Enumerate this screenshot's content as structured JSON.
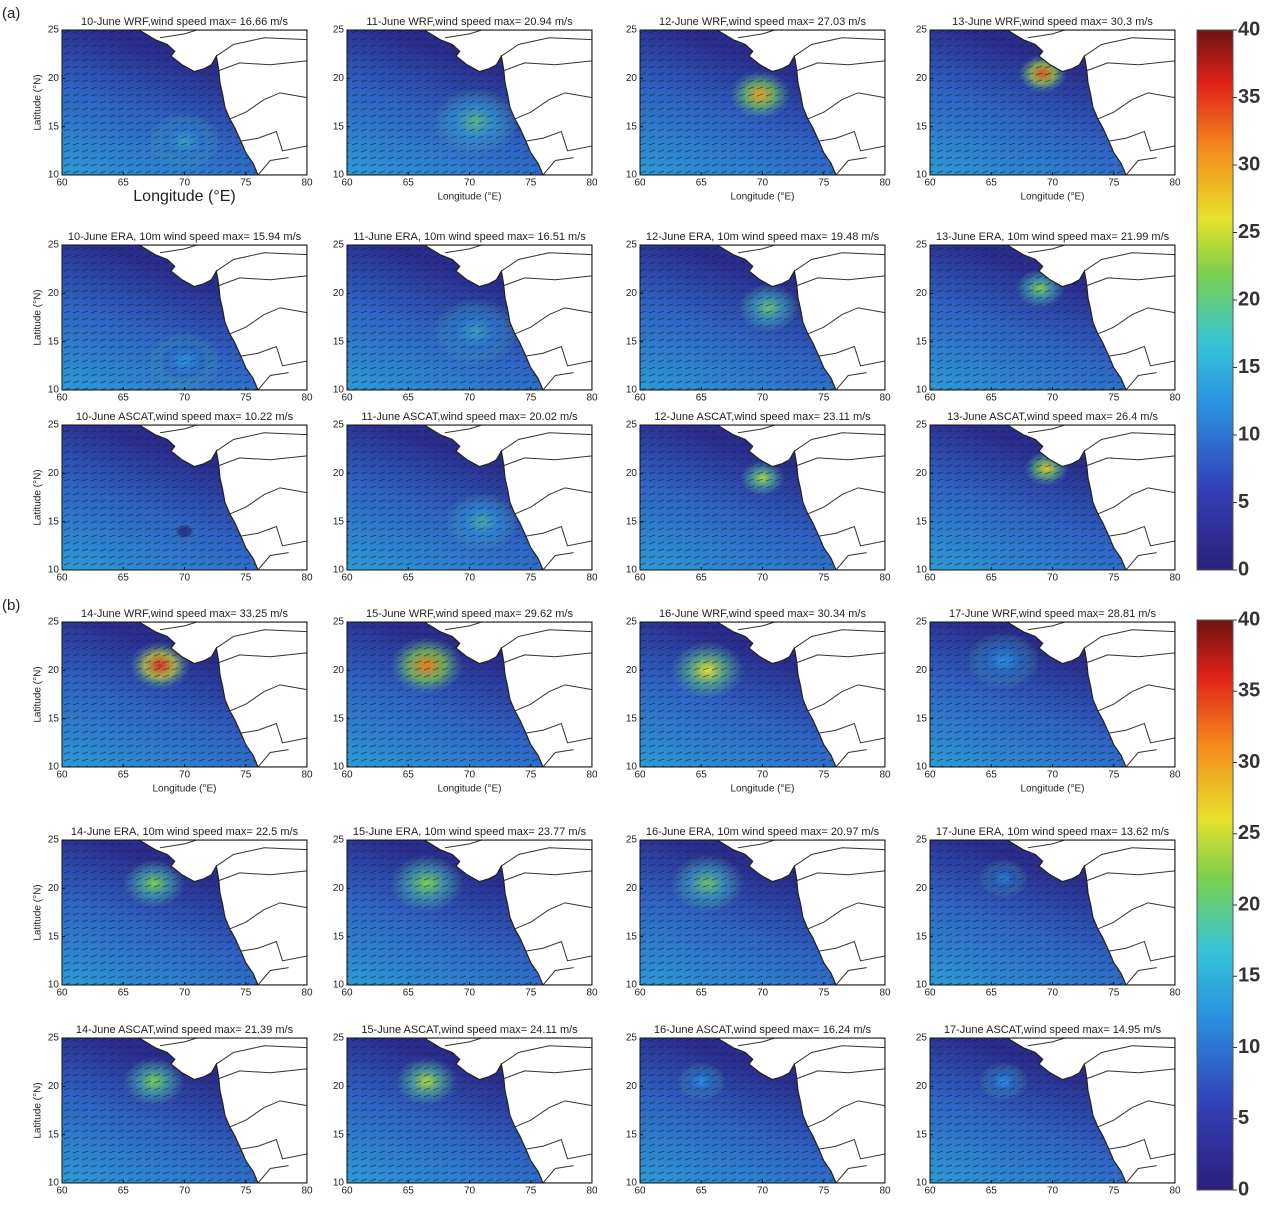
{
  "axes": {
    "xlim": [
      60,
      80
    ],
    "ylim": [
      10,
      25
    ],
    "xticks": [
      60,
      65,
      70,
      75,
      80
    ],
    "yticks": [
      10,
      15,
      20,
      25
    ],
    "xlabel": "Longitude (°E)",
    "ylabel": "Latitude (°N)"
  },
  "colorbar": {
    "lim": [
      0,
      40
    ],
    "ticks": [
      0,
      5,
      10,
      15,
      20,
      25,
      30,
      35,
      40
    ]
  },
  "parts": [
    {
      "label": "(a)",
      "panels": [
        "10-June WRF,wind speed max= 16.66 m/s",
        "11-June WRF,wind speed max= 20.94 m/s",
        "12-June WRF,wind speed max= 27.03 m/s",
        "13-June WRF,wind speed max= 30.3 m/s",
        "10-June ERA, 10m wind speed max= 15.94 m/s",
        "11-June ERA, 10m wind speed max= 16.51 m/s",
        "12-June ERA, 10m wind speed max= 19.48 m/s",
        "13-June ERA, 10m wind speed max= 21.99 m/s",
        "10-June ASCAT,wind speed max= 10.22 m/s",
        "11-June ASCAT,wind speed max= 20.02 m/s",
        "12-June ASCAT,wind speed max= 23.11 m/s",
        "13-June ASCAT,wind speed max= 26.4 m/s"
      ]
    },
    {
      "label": "(b)",
      "panels": [
        "14-June WRF,wind speed max= 33.25 m/s",
        "15-June WRF,wind speed max= 29.62 m/s",
        "16-June WRF,wind speed max= 30.34 m/s",
        "17-June WRF,wind speed max= 28.81 m/s",
        "14-June ERA, 10m wind speed max= 22.5 m/s",
        "15-June ERA, 10m wind speed max= 23.77 m/s",
        "16-June ERA, 10m wind speed max= 20.97 m/s",
        "17-June ERA, 10m wind speed max= 13.62 m/s",
        "14-June ASCAT,wind speed max= 21.39 m/s",
        "15-June ASCAT,wind speed max= 24.11 m/s",
        "16-June ASCAT,wind speed max= 16.24 m/s",
        "17-June ASCAT,wind speed max= 14.95 m/s"
      ]
    }
  ]
}
